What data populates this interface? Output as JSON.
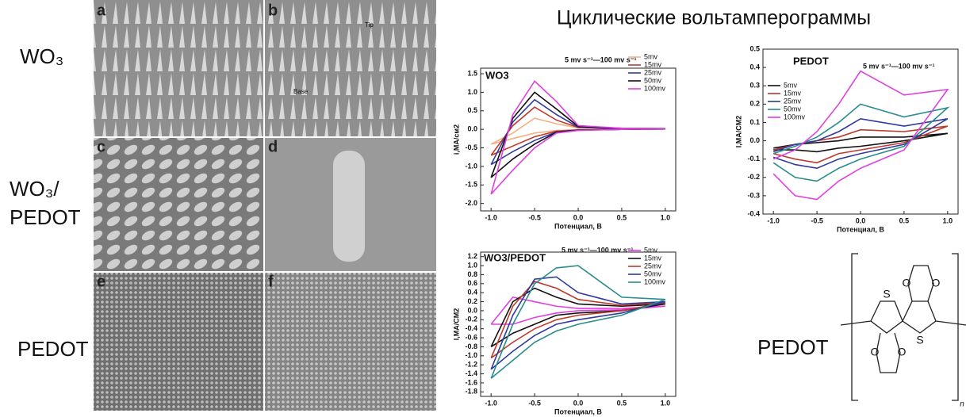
{
  "title": "Циклические вольтамперограммы",
  "row_labels": [
    "WO₃",
    "WO₃/",
    "PEDOT",
    "PEDOT"
  ],
  "panels": [
    "a",
    "b",
    "c",
    "d",
    "e",
    "f"
  ],
  "panel_notes": [
    "Tip",
    "Base"
  ],
  "structure": {
    "label": "PEDOT",
    "atoms": [
      "S",
      "S",
      "O",
      "O",
      "O",
      "O"
    ],
    "subscript": "n"
  },
  "chart_data": [
    {
      "type": "line",
      "label": "WO3",
      "annotation": "5 mv s⁻¹—100 mv s⁻¹",
      "xlabel": "Потенциал, В",
      "ylabel": "i,MA/см2",
      "x": [
        -1,
        -0.75,
        -0.5,
        -0.25,
        0,
        0.5,
        1,
        0.5,
        0,
        -0.25,
        -0.5,
        -0.75,
        -1
      ],
      "xlim": [
        -1.12,
        1.12
      ],
      "ylim": [
        -2.2,
        1.65
      ],
      "xticks": [
        {
          "value": -1,
          "label": "-1.0"
        },
        -0.5,
        {
          "value": 0,
          "label": "0.0"
        },
        0.5,
        {
          "value": 1,
          "label": "1.0"
        }
      ],
      "yticks": [
        {
          "value": -2,
          "label": "-2.0"
        },
        -1.5,
        {
          "value": -1,
          "label": "-1.0"
        },
        -0.5,
        {
          "value": 0,
          "label": "0.0"
        },
        0.5,
        {
          "value": 1,
          "label": "1.0"
        },
        1.5
      ],
      "series": [
        {
          "name": "5mv",
          "color": "#f4b183",
          "values": [
            -0.4,
            -0.1,
            0.3,
            0.15,
            0.04,
            0.02,
            0.01,
            0.0,
            -0.01,
            -0.03,
            -0.1,
            -0.25,
            -0.4
          ]
        },
        {
          "name": "15mv",
          "color": "#c0392b",
          "values": [
            -0.7,
            0.1,
            0.6,
            0.25,
            0.05,
            0.02,
            0.01,
            0.0,
            -0.02,
            -0.05,
            -0.2,
            -0.45,
            -0.7
          ]
        },
        {
          "name": "25mv",
          "color": "#2f3a9c",
          "values": [
            -0.95,
            0.2,
            0.8,
            0.4,
            0.06,
            0.02,
            0.01,
            0.0,
            -0.02,
            -0.07,
            -0.3,
            -0.6,
            -0.95
          ]
        },
        {
          "name": "50mv",
          "color": "#111111",
          "values": [
            -1.3,
            0.3,
            1.0,
            0.55,
            0.08,
            0.03,
            0.02,
            0.0,
            -0.02,
            -0.08,
            -0.4,
            -0.8,
            -1.3
          ]
        },
        {
          "name": "100mv",
          "color": "#e040e0",
          "values": [
            -1.75,
            0.4,
            1.3,
            0.75,
            0.1,
            0.03,
            0.02,
            0.0,
            -0.03,
            -0.1,
            -0.5,
            -1.1,
            -1.75
          ]
        }
      ]
    },
    {
      "type": "line",
      "label": "PEDOT",
      "annotation": "5 mv s⁻¹—100 mv s⁻¹",
      "xlabel": "Потенциал, В",
      "ylabel": "I,MA/CM2",
      "x": [
        -1,
        -0.75,
        -0.5,
        -0.25,
        0,
        0.5,
        1,
        0.5,
        0,
        -0.25,
        -0.5,
        -0.75,
        -1
      ],
      "xlim": [
        -1.12,
        1.12
      ],
      "ylim": [
        -0.4,
        0.5
      ],
      "xticks": [
        {
          "value": -1,
          "label": "-1.0"
        },
        -0.5,
        {
          "value": 0,
          "label": "0.0"
        },
        0.5,
        {
          "value": 1,
          "label": "1.0"
        }
      ],
      "yticks": [
        -0.4,
        -0.3,
        -0.2,
        -0.1,
        {
          "value": 0,
          "label": "0.0"
        },
        0.1,
        0.2,
        0.3,
        0.4,
        0.5
      ],
      "series": [
        {
          "name": "5mv",
          "color": "#111111",
          "values": [
            -0.04,
            -0.02,
            -0.01,
            0.0,
            0.02,
            0.02,
            0.04,
            0.0,
            -0.03,
            -0.04,
            -0.06,
            -0.05,
            -0.05
          ]
        },
        {
          "name": "15mv",
          "color": "#c0392b",
          "values": [
            -0.05,
            -0.02,
            0.0,
            0.02,
            0.06,
            0.05,
            0.08,
            -0.01,
            -0.05,
            -0.07,
            -0.12,
            -0.1,
            -0.07
          ]
        },
        {
          "name": "25mv",
          "color": "#2f3a9c",
          "values": [
            -0.06,
            -0.02,
            0.0,
            0.05,
            0.12,
            0.08,
            0.12,
            -0.02,
            -0.07,
            -0.1,
            -0.15,
            -0.13,
            -0.09
          ]
        },
        {
          "name": "50mv",
          "color": "#2a8c8c",
          "values": [
            -0.07,
            -0.03,
            0.02,
            0.1,
            0.2,
            0.13,
            0.18,
            -0.03,
            -0.1,
            -0.15,
            -0.22,
            -0.2,
            -0.12
          ]
        },
        {
          "name": "100mv",
          "color": "#e040e0",
          "values": [
            -0.1,
            -0.05,
            0.05,
            0.2,
            0.38,
            0.25,
            0.28,
            -0.05,
            -0.15,
            -0.22,
            -0.32,
            -0.3,
            -0.18
          ]
        }
      ]
    },
    {
      "type": "line",
      "label": "WO3/PEDOT",
      "annotation": "5 mv s⁻¹—100 mv s⁻¹",
      "xlabel": "Потенциал, В",
      "ylabel": "I,MA/CM2",
      "x": [
        -1,
        -0.75,
        -0.5,
        -0.25,
        0,
        0.5,
        1,
        0.5,
        0,
        -0.25,
        -0.5,
        -0.75,
        -1
      ],
      "xlim": [
        -1.12,
        1.12
      ],
      "ylim": [
        -1.9,
        1.3
      ],
      "xticks": [
        {
          "value": -1,
          "label": "-1.0"
        },
        -0.5,
        {
          "value": 0,
          "label": "0.0"
        },
        0.5,
        {
          "value": 1,
          "label": "1.0"
        }
      ],
      "yticks": [
        -1.8,
        -1.6,
        -1.4,
        -1.2,
        {
          "value": -1,
          "label": "-1.0"
        },
        -0.8,
        -0.6,
        -0.4,
        -0.2,
        {
          "value": 0,
          "label": "0.0"
        },
        0.2,
        0.4,
        0.6,
        0.8,
        {
          "value": 1,
          "label": "1.0"
        },
        1.2
      ],
      "series": [
        {
          "name": "5mv",
          "color": "#e040e0",
          "values": [
            -0.3,
            0.3,
            0.2,
            0.1,
            0.05,
            0.05,
            0.1,
            0.02,
            0.0,
            -0.05,
            -0.15,
            -0.3,
            -0.3
          ]
        },
        {
          "name": "15mv",
          "color": "#111111",
          "values": [
            -0.8,
            0.2,
            0.5,
            0.3,
            0.15,
            0.1,
            0.15,
            0.0,
            -0.05,
            -0.1,
            -0.3,
            -0.5,
            -0.8
          ]
        },
        {
          "name": "25mv",
          "color": "#c0392b",
          "values": [
            -1.05,
            0.1,
            0.65,
            0.5,
            0.25,
            0.12,
            0.18,
            0.0,
            -0.1,
            -0.2,
            -0.4,
            -0.7,
            -1.05
          ]
        },
        {
          "name": "50mv",
          "color": "#2f3a9c",
          "values": [
            -1.3,
            -0.1,
            0.7,
            0.75,
            0.4,
            0.15,
            0.2,
            -0.05,
            -0.2,
            -0.3,
            -0.55,
            -0.9,
            -1.3
          ]
        },
        {
          "name": "100mv",
          "color": "#2a8c8c",
          "values": [
            -1.5,
            -0.3,
            0.6,
            0.95,
            1.0,
            0.3,
            0.25,
            -0.1,
            -0.3,
            -0.45,
            -0.7,
            -1.1,
            -1.5
          ]
        }
      ]
    }
  ]
}
